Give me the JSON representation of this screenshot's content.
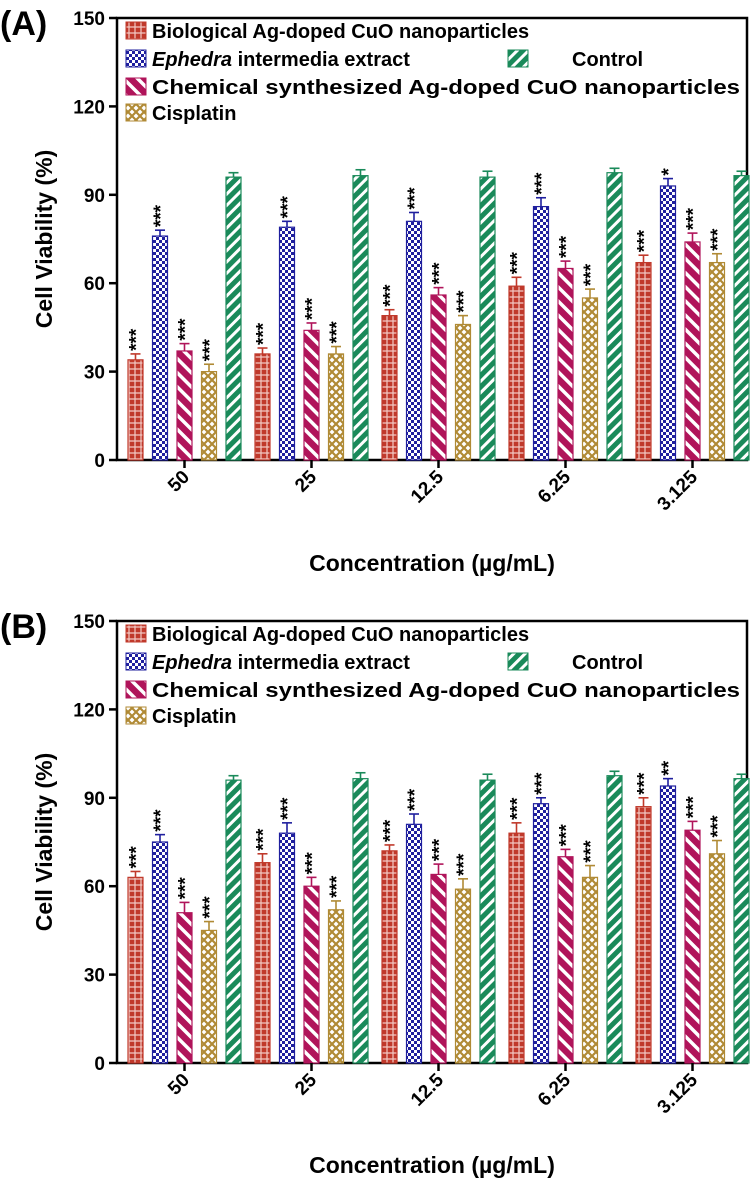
{
  "colors": {
    "biological": "#c0392b",
    "ephedra": "#1f1f9e",
    "control": "#1a8a5a",
    "chemical": "#b0145a",
    "cisplatin": "#b08a35"
  },
  "chart_data": [
    {
      "type": "bar",
      "panel": "(A)",
      "title": "",
      "xlabel": "Concentration (µg/mL)",
      "ylabel": "Cell Viability (%)",
      "ylim": [
        0,
        150
      ],
      "yticks": [
        "0",
        "30",
        "60",
        "90",
        "120",
        "150"
      ],
      "categories": [
        "50",
        "25",
        "12.5",
        "6.25",
        "3.125"
      ],
      "legend": {
        "biological": "Biological Ag-doped CuO nanoparticles",
        "ephedra_italic": "Ephedra",
        "ephedra_rest": " intermedia extract",
        "control": "Control",
        "chemical": "Chemical synthesized Ag-doped CuO nanoparticles",
        "cisplatin": "Cisplatin"
      },
      "series": [
        {
          "name": "Biological Ag-doped CuO nanoparticles",
          "key": "biological",
          "values": [
            34,
            36,
            49,
            59,
            67
          ],
          "errors": [
            2,
            2,
            2,
            3,
            2.5
          ],
          "sig": [
            "***",
            "***",
            "***",
            "***",
            "***"
          ]
        },
        {
          "name": "Ephedra intermedia extract",
          "key": "ephedra",
          "values": [
            76,
            79,
            81,
            86,
            93
          ],
          "errors": [
            2,
            2,
            3,
            3,
            2.5
          ],
          "sig": [
            "***",
            "***",
            "***",
            "***",
            "*"
          ]
        },
        {
          "name": "Chemical synthesized Ag-doped CuO nanoparticles",
          "key": "chemical",
          "values": [
            37,
            44,
            56,
            65,
            74
          ],
          "errors": [
            2.5,
            2.5,
            2.5,
            2.5,
            3
          ],
          "sig": [
            "***",
            "***",
            "***",
            "***",
            "***"
          ]
        },
        {
          "name": "Cisplatin",
          "key": "cisplatin",
          "values": [
            30,
            36,
            46,
            55,
            67
          ],
          "errors": [
            2.5,
            2.5,
            3,
            3,
            3
          ],
          "sig": [
            "***",
            "***",
            "***",
            "***",
            "***"
          ]
        },
        {
          "name": "Control",
          "key": "control",
          "values": [
            96,
            96.5,
            96,
            97.5,
            96.5
          ],
          "errors": [
            1.5,
            2,
            2,
            1.5,
            1.5
          ],
          "sig": [
            "",
            "",
            "",
            "",
            ""
          ]
        }
      ]
    },
    {
      "type": "bar",
      "panel": "(B)",
      "title": "",
      "xlabel": "Concentration (µg/mL)",
      "ylabel": "Cell Viability (%)",
      "ylim": [
        0,
        150
      ],
      "yticks": [
        "0",
        "30",
        "60",
        "90",
        "120",
        "150"
      ],
      "categories": [
        "50",
        "25",
        "12.5",
        "6.25",
        "3.125"
      ],
      "legend": {
        "biological": "Biological Ag-doped CuO nanoparticles",
        "ephedra_italic": "Ephedra",
        "ephedra_rest": " intermedia extract",
        "control": "Control",
        "chemical": "Chemical synthesized Ag-doped CuO nanoparticles",
        "cisplatin": "Cisplatin"
      },
      "series": [
        {
          "name": "Biological Ag-doped CuO nanoparticles",
          "key": "biological",
          "values": [
            63,
            68,
            72,
            78,
            87
          ],
          "errors": [
            2,
            3,
            2,
            3.5,
            3
          ],
          "sig": [
            "***",
            "***",
            "***",
            "***",
            "***"
          ]
        },
        {
          "name": "Ephedra intermedia extract",
          "key": "ephedra",
          "values": [
            75,
            78,
            81,
            88,
            94
          ],
          "errors": [
            2.5,
            3.5,
            3.5,
            2,
            2.5
          ],
          "sig": [
            "***",
            "***",
            "***",
            "***",
            "**"
          ]
        },
        {
          "name": "Chemical synthesized Ag-doped CuO nanoparticles",
          "key": "chemical",
          "values": [
            51,
            60,
            64,
            70,
            79
          ],
          "errors": [
            3.5,
            3,
            3.5,
            2.5,
            3
          ],
          "sig": [
            "***",
            "***",
            "***",
            "***",
            "***"
          ]
        },
        {
          "name": "Cisplatin",
          "key": "cisplatin",
          "values": [
            45,
            52,
            59,
            63,
            71
          ],
          "errors": [
            3,
            3,
            3.5,
            4,
            4.5
          ],
          "sig": [
            "***",
            "***",
            "***",
            "***",
            "***"
          ]
        },
        {
          "name": "Control",
          "key": "control",
          "values": [
            96,
            96.5,
            96,
            97.5,
            96.5
          ],
          "errors": [
            1.5,
            2,
            2,
            1.5,
            1.5
          ],
          "sig": [
            "",
            "",
            "",
            "",
            ""
          ]
        }
      ]
    }
  ]
}
